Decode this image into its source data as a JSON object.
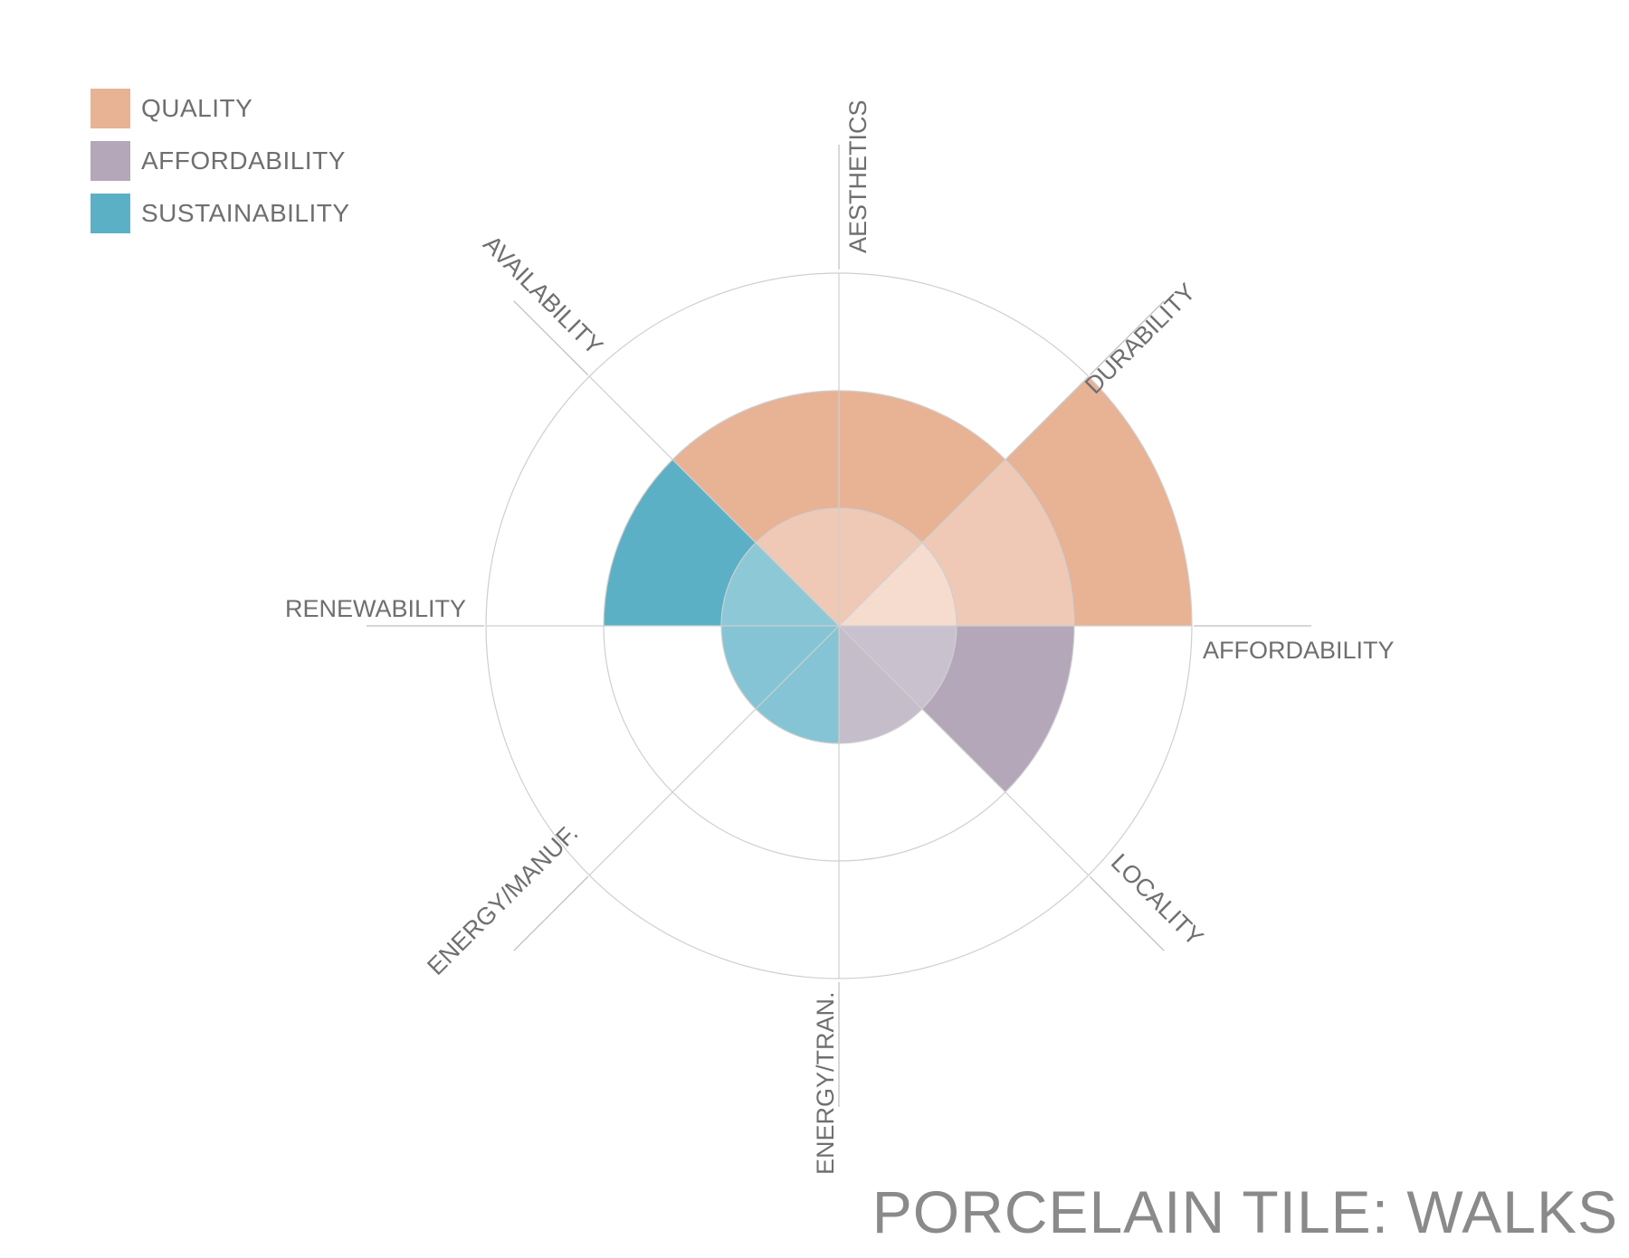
{
  "title": "PORCELAIN TILE: WALKS",
  "chart_data": {
    "type": "polar-area",
    "rings": 3,
    "rlim": [
      0,
      3
    ],
    "categories": [
      {
        "name": "AESTHETICS",
        "group": "QUALITY",
        "value": 2
      },
      {
        "name": "DURABILITY",
        "group": "QUALITY",
        "value": 3
      },
      {
        "name": "AFFORDABILITY",
        "group": "AFFORDABILITY",
        "value": 2
      },
      {
        "name": "LOCALITY",
        "group": "AFFORDABILITY",
        "value": 1
      },
      {
        "name": "ENERGY/TRAN.",
        "group": "SUSTAINABILITY",
        "value": 1
      },
      {
        "name": "ENERGY/MANUF.",
        "group": "SUSTAINABILITY",
        "value": 1
      },
      {
        "name": "RENEWABILITY",
        "group": "SUSTAINABILITY",
        "value": 2
      },
      {
        "name": "AVAILABILITY",
        "group": "QUALITY",
        "value": 2
      }
    ],
    "legend": [
      {
        "name": "QUALITY",
        "color": "#e8b295"
      },
      {
        "name": "AFFORDABILITY",
        "color": "#b3a7b9"
      },
      {
        "name": "SUSTAINABILITY",
        "color": "#5cb0c6"
      }
    ],
    "legend_position": "top-left",
    "grid": true
  }
}
